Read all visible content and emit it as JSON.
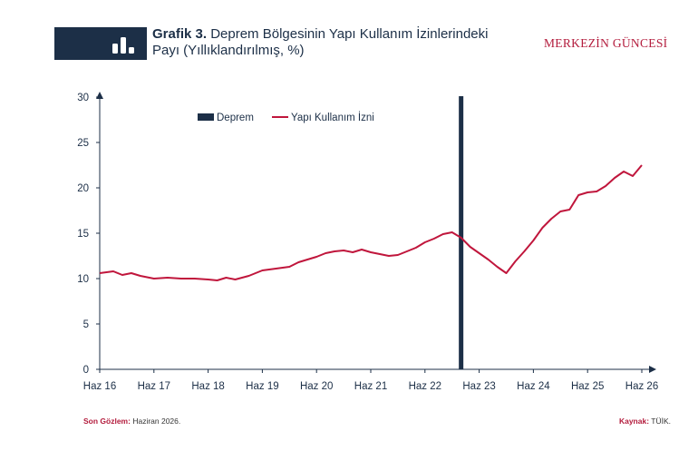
{
  "header": {
    "title_bold": "Grafik 3.",
    "title_rest": "Deprem Bölgesinin Yapı Kullanım İzinlerindeki",
    "subtitle": "Payı (Yıllıklandırılmış, %)",
    "brand": "MERKEZİN GÜNCESİ",
    "icon": "bar-chart-icon"
  },
  "footer": {
    "last_obs_label": "Son Gözlem:",
    "last_obs_value": "Haziran 2026.",
    "source_label": "Kaynak:",
    "source_value": "TÜİK."
  },
  "colors": {
    "navy": "#1c2f47",
    "crimson": "#c0163c",
    "brand": "#b31b3c"
  },
  "chart_data": {
    "type": "line",
    "x_tick_labels": [
      "Haz 16",
      "Haz 17",
      "Haz 18",
      "Haz 19",
      "Haz 20",
      "Haz 21",
      "Haz 22",
      "Haz 23",
      "Haz 24",
      "Haz 25",
      "Haz 26"
    ],
    "y_ticks": [
      0,
      5,
      10,
      15,
      20,
      25,
      30
    ],
    "ylim": [
      0,
      30
    ],
    "xlim": [
      "2016-06",
      "2026-06"
    ],
    "legend": {
      "placement": "top-left",
      "entries": [
        "Deprem",
        "Yapı Kullanım İzni"
      ]
    },
    "event": {
      "name": "Deprem",
      "date": "2023-02"
    },
    "series": [
      {
        "name": "Yapı Kullanım İzni",
        "color": "#c0163c",
        "points": [
          [
            "2016-06",
            10.6
          ],
          [
            "2016-09",
            10.8
          ],
          [
            "2016-11",
            10.4
          ],
          [
            "2017-01",
            10.6
          ],
          [
            "2017-03",
            10.3
          ],
          [
            "2017-06",
            10.0
          ],
          [
            "2017-09",
            10.1
          ],
          [
            "2017-12",
            10.0
          ],
          [
            "2018-03",
            10.0
          ],
          [
            "2018-06",
            9.9
          ],
          [
            "2018-08",
            9.8
          ],
          [
            "2018-10",
            10.1
          ],
          [
            "2018-12",
            9.9
          ],
          [
            "2019-03",
            10.3
          ],
          [
            "2019-06",
            10.9
          ],
          [
            "2019-09",
            11.1
          ],
          [
            "2019-12",
            11.3
          ],
          [
            "2020-02",
            11.8
          ],
          [
            "2020-04",
            12.1
          ],
          [
            "2020-06",
            12.4
          ],
          [
            "2020-08",
            12.8
          ],
          [
            "2020-10",
            13.0
          ],
          [
            "2020-12",
            13.1
          ],
          [
            "2021-02",
            12.9
          ],
          [
            "2021-04",
            13.2
          ],
          [
            "2021-06",
            12.9
          ],
          [
            "2021-08",
            12.7
          ],
          [
            "2021-10",
            12.5
          ],
          [
            "2021-12",
            12.6
          ],
          [
            "2022-02",
            13.0
          ],
          [
            "2022-04",
            13.4
          ],
          [
            "2022-06",
            14.0
          ],
          [
            "2022-08",
            14.4
          ],
          [
            "2022-10",
            14.9
          ],
          [
            "2022-12",
            15.1
          ],
          [
            "2023-02",
            14.5
          ],
          [
            "2023-04",
            13.5
          ],
          [
            "2023-06",
            12.8
          ],
          [
            "2023-08",
            12.1
          ],
          [
            "2023-10",
            11.3
          ],
          [
            "2023-12",
            10.6
          ],
          [
            "2024-02",
            11.9
          ],
          [
            "2024-04",
            13.0
          ],
          [
            "2024-06",
            14.2
          ],
          [
            "2024-08",
            15.6
          ],
          [
            "2024-10",
            16.6
          ],
          [
            "2024-12",
            17.4
          ],
          [
            "2025-02",
            17.6
          ],
          [
            "2025-04",
            19.2
          ],
          [
            "2025-06",
            19.5
          ],
          [
            "2025-08",
            19.6
          ],
          [
            "2025-10",
            20.2
          ],
          [
            "2025-12",
            21.1
          ],
          [
            "2026-02",
            21.8
          ],
          [
            "2026-04",
            21.3
          ],
          [
            "2026-06",
            22.5
          ]
        ]
      }
    ]
  }
}
